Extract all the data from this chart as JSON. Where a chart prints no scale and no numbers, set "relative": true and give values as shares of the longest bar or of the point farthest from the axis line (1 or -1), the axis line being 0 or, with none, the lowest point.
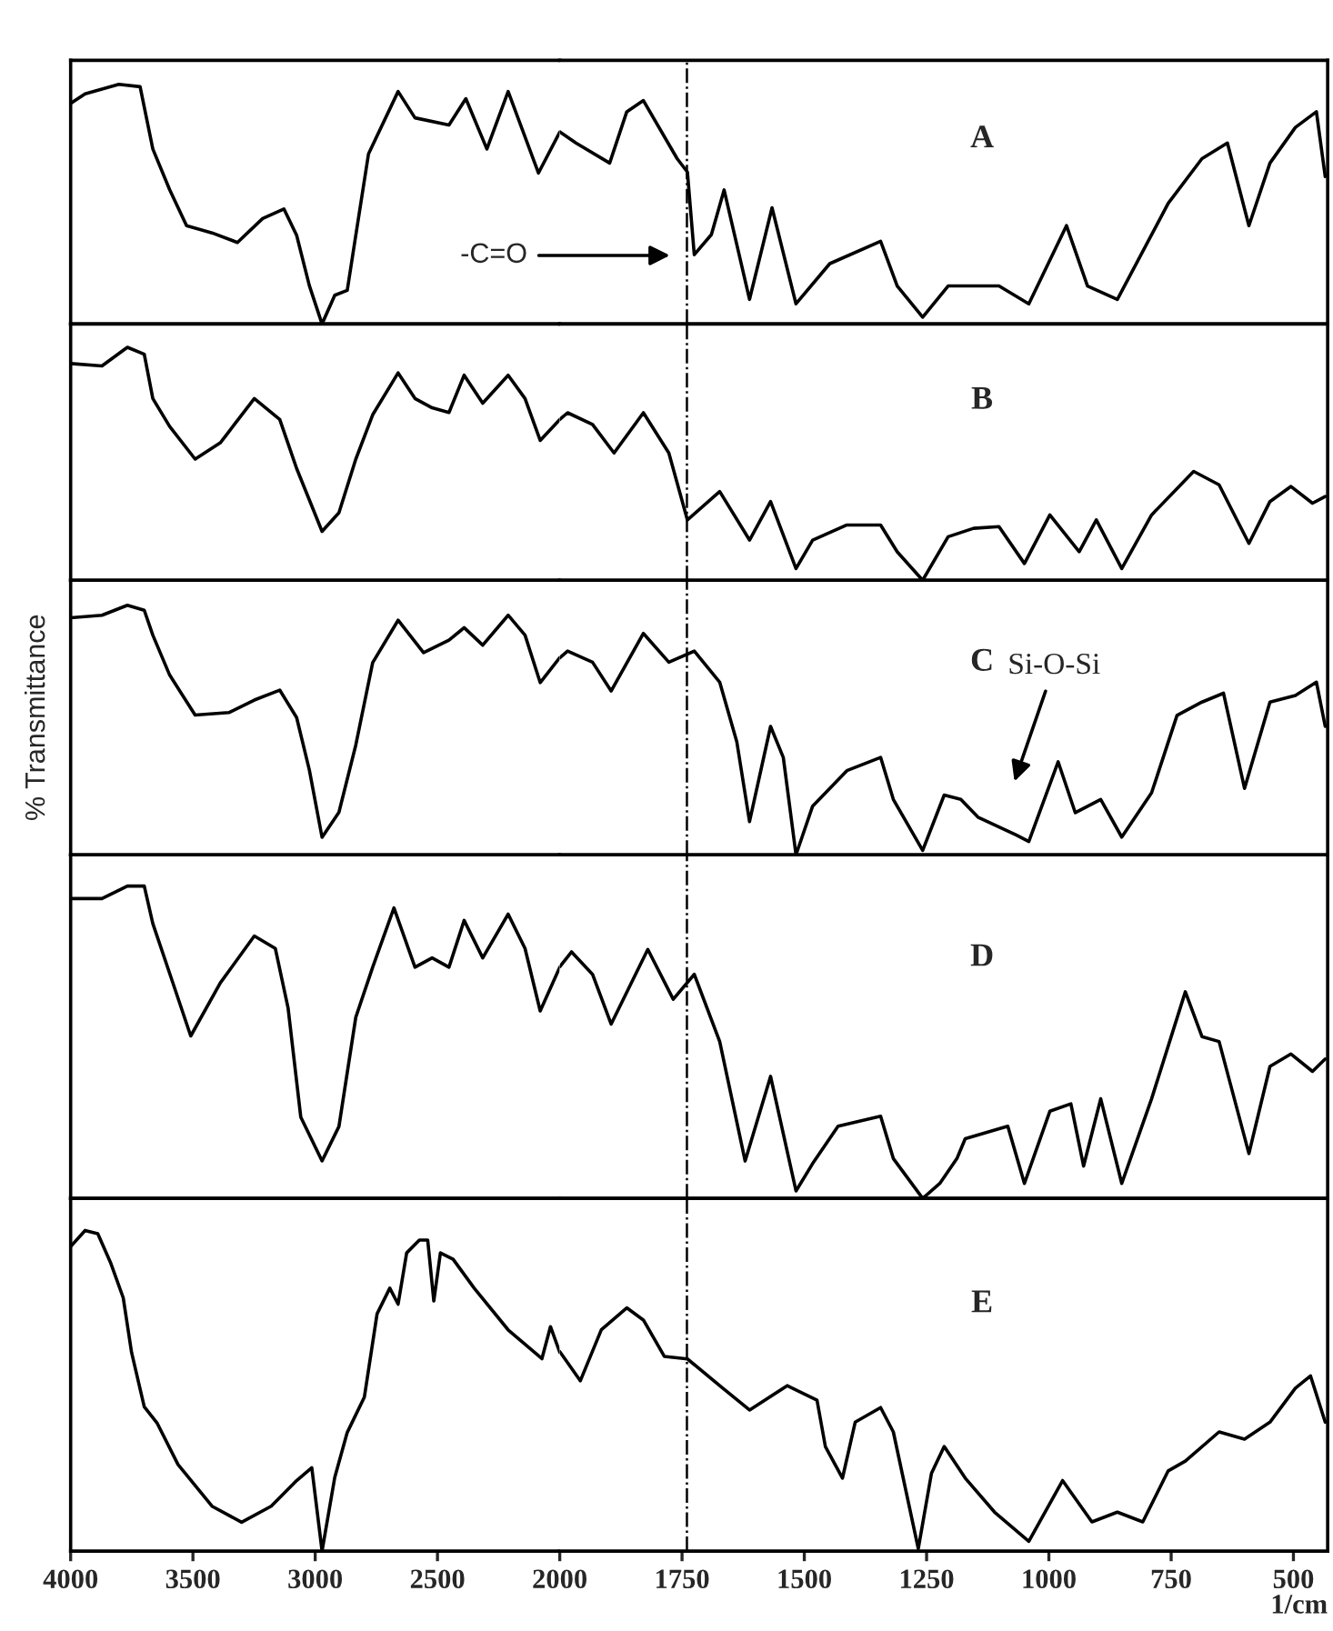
{
  "chart_data": [
    {
      "type": "line",
      "relative": true,
      "x": [
        4000,
        3941,
        3803,
        3716,
        3664,
        3595,
        3526,
        3422,
        3318,
        3215,
        3128,
        3076,
        3024,
        2972,
        2920,
        2869,
        2834,
        2782,
        2661,
        2592,
        2453,
        2384,
        2298,
        2211,
        2087,
        2000
      ],
      "series": [
        {
          "color": "#000000",
          "values": [
            0.92,
            0.96,
            1.0,
            0.99,
            0.73,
            0.56,
            0.41,
            0.38,
            0.34,
            0.44,
            0.48,
            0.37,
            0.16,
            0.0,
            0.12,
            0.14,
            0.37,
            0.71,
            0.97,
            0.86,
            0.83,
            0.94,
            0.73,
            0.97,
            0.63,
            0.8
          ]
        }
      ],
      "xlim": [
        4000,
        2000
      ],
      "xticks": [
        4000,
        3500,
        3000,
        2500,
        2000
      ],
      "ylim": [
        0,
        1.1
      ],
      "tick_labels": false
    },
    {
      "type": "line",
      "relative": true,
      "x": [
        2000,
        1967,
        1898,
        1863,
        1829,
        1760,
        1739,
        1725,
        1690,
        1664,
        1612,
        1566,
        1517,
        1448,
        1344,
        1310,
        1258,
        1206,
        1102,
        1041,
        964,
        921,
        860,
        756,
        687,
        635,
        591,
        548,
        496,
        453,
        435
      ],
      "series": [
        {
          "color": "#000000",
          "values": [
            0.86,
            0.81,
            0.72,
            0.95,
            1.0,
            0.74,
            0.68,
            0.31,
            0.4,
            0.6,
            0.11,
            0.52,
            0.09,
            0.27,
            0.37,
            0.17,
            0.03,
            0.17,
            0.17,
            0.09,
            0.44,
            0.17,
            0.11,
            0.54,
            0.74,
            0.81,
            0.44,
            0.72,
            0.88,
            0.95,
            0.66
          ]
        }
      ],
      "xlim": [
        2000,
        430
      ],
      "xticks": [
        1750,
        1500,
        1250,
        1000,
        750,
        500
      ],
      "ylim": [
        0,
        1.18
      ],
      "tick_labels": false,
      "ref_lines": [
        {
          "axis": "x",
          "value": 1740,
          "line_style": "dashdot",
          "color": "#000000"
        }
      ],
      "annotations": [
        "A",
        "-C=O"
      ]
    },
    {
      "type": "line",
      "relative": true,
      "x": [
        4000,
        3872,
        3768,
        3699,
        3664,
        3595,
        3491,
        3388,
        3249,
        3145,
        3076,
        2972,
        2903,
        2834,
        2765,
        2661,
        2592,
        2522,
        2453,
        2391,
        2315,
        2211,
        2142,
        2080,
        2000
      ],
      "series": [
        {
          "color": "#000000",
          "values": [
            0.93,
            0.92,
            1.0,
            0.97,
            0.78,
            0.66,
            0.52,
            0.59,
            0.78,
            0.69,
            0.48,
            0.21,
            0.29,
            0.52,
            0.71,
            0.89,
            0.78,
            0.74,
            0.72,
            0.88,
            0.76,
            0.88,
            0.78,
            0.6,
            0.69
          ]
        }
      ],
      "xlim": [
        4000,
        2000
      ],
      "xticks": [
        4000,
        3500,
        3000,
        2500,
        2000
      ],
      "ylim": [
        0,
        1.1
      ],
      "tick_labels": false
    },
    {
      "type": "line",
      "relative": true,
      "x": [
        2000,
        1984,
        1933,
        1889,
        1829,
        1777,
        1739,
        1673,
        1612,
        1569,
        1517,
        1483,
        1413,
        1344,
        1310,
        1258,
        1206,
        1154,
        1102,
        1050,
        998,
        938,
        903,
        851,
        790,
        704,
        652,
        591,
        548,
        505,
        461,
        435
      ],
      "series": [
        {
          "color": "#000000",
          "values": [
            0.96,
            1.0,
            0.93,
            0.76,
            1.0,
            0.76,
            0.36,
            0.53,
            0.24,
            0.47,
            0.07,
            0.24,
            0.33,
            0.33,
            0.17,
            0.0,
            0.26,
            0.31,
            0.32,
            0.1,
            0.39,
            0.17,
            0.36,
            0.07,
            0.39,
            0.65,
            0.57,
            0.22,
            0.47,
            0.56,
            0.46,
            0.5
          ]
        }
      ],
      "xlim": [
        2000,
        430
      ],
      "xticks": [
        1750,
        1500,
        1250,
        1000,
        750,
        500
      ],
      "ylim": [
        0,
        1.53
      ],
      "tick_labels": false,
      "ref_lines": [
        {
          "axis": "x",
          "value": 1740,
          "line_style": "dashdot",
          "color": "#000000"
        }
      ],
      "annotations": [
        "B"
      ]
    },
    {
      "type": "line",
      "relative": true,
      "ylabel": "% Transmittance",
      "x": [
        4000,
        3872,
        3768,
        3699,
        3664,
        3595,
        3491,
        3353,
        3249,
        3145,
        3076,
        3024,
        2972,
        2903,
        2834,
        2765,
        2661,
        2557,
        2453,
        2391,
        2315,
        2211,
        2142,
        2080,
        2000
      ],
      "series": [
        {
          "color": "#000000",
          "values": [
            0.95,
            0.96,
            1.0,
            0.98,
            0.88,
            0.72,
            0.56,
            0.57,
            0.62,
            0.66,
            0.55,
            0.34,
            0.07,
            0.17,
            0.44,
            0.77,
            0.94,
            0.81,
            0.86,
            0.91,
            0.84,
            0.96,
            0.88,
            0.69,
            0.79
          ]
        }
      ],
      "xlim": [
        4000,
        2000
      ],
      "xticks": [
        4000,
        3500,
        3000,
        2500,
        2000
      ],
      "ylim": [
        0,
        1.1
      ],
      "tick_labels": false
    },
    {
      "type": "line",
      "relative": true,
      "x": [
        2000,
        1984,
        1933,
        1895,
        1829,
        1777,
        1725,
        1673,
        1638,
        1612,
        1569,
        1543,
        1517,
        1483,
        1413,
        1344,
        1318,
        1258,
        1214,
        1180,
        1145,
        1067,
        1041,
        981,
        946,
        894,
        851,
        790,
        738,
        687,
        643,
        600,
        548,
        496,
        453,
        435
      ],
      "series": [
        {
          "color": "#000000",
          "values": [
            0.89,
            0.92,
            0.87,
            0.74,
            1.0,
            0.87,
            0.92,
            0.78,
            0.51,
            0.15,
            0.58,
            0.44,
            0.0,
            0.22,
            0.38,
            0.44,
            0.25,
            0.02,
            0.27,
            0.25,
            0.17,
            0.09,
            0.06,
            0.42,
            0.19,
            0.25,
            0.08,
            0.28,
            0.63,
            0.69,
            0.73,
            0.3,
            0.69,
            0.72,
            0.78,
            0.58
          ]
        }
      ],
      "xlim": [
        2000,
        430
      ],
      "xticks": [
        1750,
        1500,
        1250,
        1000,
        750,
        500
      ],
      "ylim": [
        0,
        1.24
      ],
      "tick_labels": false,
      "ref_lines": [
        {
          "axis": "x",
          "value": 1740,
          "line_style": "dashdot",
          "color": "#000000"
        }
      ],
      "annotations": [
        "C",
        "Si-O-Si"
      ]
    },
    {
      "type": "line",
      "relative": true,
      "x": [
        4000,
        3872,
        3768,
        3699,
        3664,
        3595,
        3509,
        3388,
        3249,
        3163,
        3111,
        3059,
        2972,
        2903,
        2834,
        2765,
        2678,
        2592,
        2522,
        2453,
        2391,
        2315,
        2211,
        2142,
        2080,
        2000
      ],
      "series": [
        {
          "color": "#000000",
          "values": [
            0.96,
            0.96,
            1.0,
            1.0,
            0.88,
            0.72,
            0.52,
            0.69,
            0.84,
            0.8,
            0.61,
            0.26,
            0.12,
            0.23,
            0.58,
            0.74,
            0.93,
            0.74,
            0.77,
            0.74,
            0.89,
            0.77,
            0.91,
            0.8,
            0.6,
            0.74
          ]
        }
      ],
      "xlim": [
        4000,
        2000
      ],
      "xticks": [
        4000,
        3500,
        3000,
        2500,
        2000
      ],
      "ylim": [
        0,
        1.1
      ],
      "tick_labels": false
    },
    {
      "type": "line",
      "relative": true,
      "x": [
        2000,
        1976,
        1933,
        1895,
        1820,
        1768,
        1725,
        1673,
        1621,
        1569,
        1517,
        1483,
        1431,
        1344,
        1318,
        1258,
        1223,
        1188,
        1171,
        1084,
        1050,
        998,
        955,
        929,
        894,
        851,
        790,
        721,
        687,
        652,
        591,
        548,
        505,
        461,
        435
      ],
      "series": [
        {
          "color": "#000000",
          "values": [
            0.93,
            0.99,
            0.9,
            0.7,
            1.0,
            0.8,
            0.9,
            0.63,
            0.15,
            0.49,
            0.03,
            0.14,
            0.29,
            0.33,
            0.16,
            0.0,
            0.06,
            0.16,
            0.24,
            0.29,
            0.06,
            0.35,
            0.38,
            0.13,
            0.4,
            0.06,
            0.4,
            0.83,
            0.65,
            0.63,
            0.18,
            0.53,
            0.58,
            0.51,
            0.56
          ]
        }
      ],
      "xlim": [
        2000,
        430
      ],
      "xticks": [
        1750,
        1500,
        1250,
        1000,
        750,
        500
      ],
      "ylim": [
        0,
        1.38
      ],
      "tick_labels": false,
      "ref_lines": [
        {
          "axis": "x",
          "value": 1740,
          "line_style": "dashdot",
          "color": "#000000"
        }
      ],
      "annotations": [
        "D"
      ]
    },
    {
      "type": "line",
      "relative": true,
      "x": [
        4000,
        3941,
        3889,
        3837,
        3785,
        3751,
        3699,
        3647,
        3561,
        3422,
        3301,
        3180,
        3076,
        3014,
        2972,
        2920,
        2869,
        2799,
        2747,
        2695,
        2661,
        2626,
        2574,
        2540,
        2515,
        2488,
        2436,
        2350,
        2211,
        2073,
        2038,
        2000
      ],
      "series": [
        {
          "color": "#000000",
          "values": [
            0.95,
            1.0,
            0.99,
            0.9,
            0.79,
            0.62,
            0.45,
            0.4,
            0.27,
            0.14,
            0.09,
            0.14,
            0.22,
            0.26,
            0.0,
            0.23,
            0.37,
            0.48,
            0.74,
            0.82,
            0.77,
            0.93,
            0.97,
            0.97,
            0.78,
            0.93,
            0.91,
            0.82,
            0.69,
            0.6,
            0.7,
            0.62
          ]
        }
      ],
      "xlim": [
        4000,
        2000
      ],
      "xticks": [
        4000,
        3500,
        3000,
        2500,
        2000
      ],
      "ylim": [
        0,
        1.1
      ],
      "tick_labels": "x"
    },
    {
      "type": "line",
      "relative": true,
      "xlabel": "1/cm",
      "x": [
        2000,
        1993,
        1958,
        1915,
        1863,
        1829,
        1786,
        1739,
        1673,
        1612,
        1535,
        1474,
        1457,
        1422,
        1396,
        1344,
        1318,
        1267,
        1240,
        1214,
        1171,
        1111,
        1041,
        972,
        912,
        860,
        808,
        756,
        721,
        652,
        600,
        548,
        496,
        465,
        435
      ],
      "series": [
        {
          "color": "#000000",
          "values": [
            0.82,
            0.8,
            0.7,
            0.91,
            1.0,
            0.95,
            0.8,
            0.79,
            0.68,
            0.58,
            0.68,
            0.62,
            0.43,
            0.3,
            0.53,
            0.59,
            0.49,
            0.01,
            0.32,
            0.43,
            0.3,
            0.16,
            0.04,
            0.29,
            0.12,
            0.16,
            0.12,
            0.33,
            0.37,
            0.49,
            0.46,
            0.53,
            0.67,
            0.72,
            0.53
          ]
        }
      ],
      "xlim": [
        2000,
        430
      ],
      "xticks": [
        1750,
        1500,
        1250,
        1000,
        750,
        500
      ],
      "ylim": [
        0,
        1.45
      ],
      "tick_labels": "x",
      "ref_lines": [
        {
          "axis": "x",
          "value": 1740,
          "line_style": "dashdot",
          "color": "#000000"
        }
      ],
      "annotations": [
        "E"
      ]
    }
  ]
}
